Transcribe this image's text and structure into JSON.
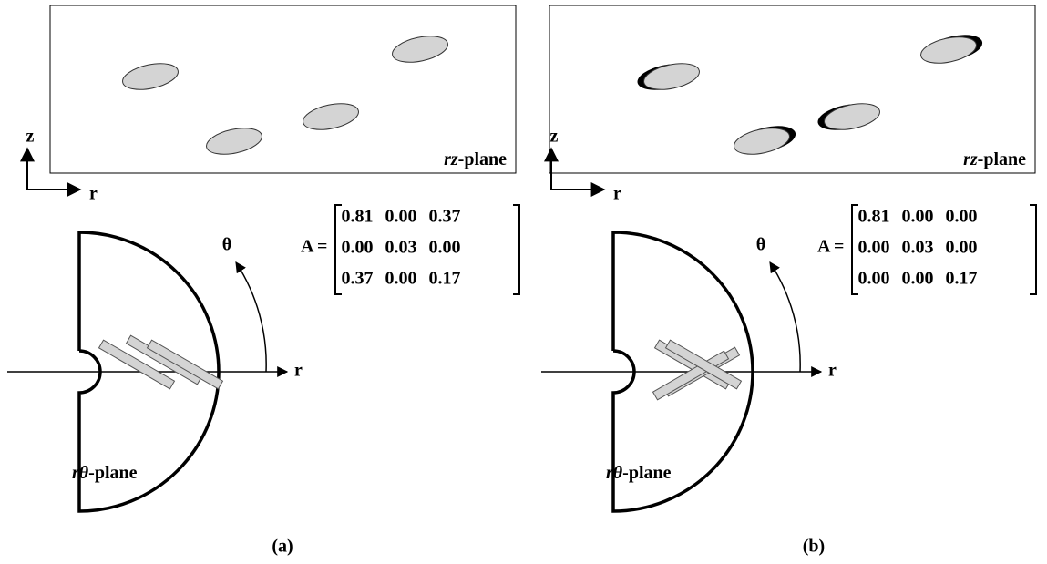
{
  "panels": [
    {
      "axes": {
        "z": "z",
        "r": "r"
      },
      "rz_plane": {
        "italic": "rz",
        "text": "-plane"
      },
      "theta": "θ",
      "r": "r",
      "rtheta_plane": {
        "italic": "rθ",
        "text": "-plane"
      },
      "matrix": {
        "name": "A",
        "equals": "=",
        "rows": [
          [
            "0.81",
            "0.00",
            "0.37"
          ],
          [
            "0.00",
            "0.03",
            "0.00"
          ],
          [
            "0.37",
            "0.00",
            "0.17"
          ]
        ]
      },
      "caption": "(a)"
    },
    {
      "axes": {
        "z": "z",
        "r": "r"
      },
      "rz_plane": {
        "italic": "rz",
        "text": "-plane"
      },
      "theta": "θ",
      "r": "r",
      "rtheta_plane": {
        "italic": "rθ",
        "text": "-plane"
      },
      "matrix": {
        "name": "A",
        "equals": "=",
        "rows": [
          [
            "0.81",
            "0.00",
            "0.00"
          ],
          [
            "0.00",
            "0.03",
            "0.00"
          ],
          [
            "0.00",
            "0.00",
            "0.17"
          ]
        ]
      },
      "caption": "(b)"
    }
  ]
}
